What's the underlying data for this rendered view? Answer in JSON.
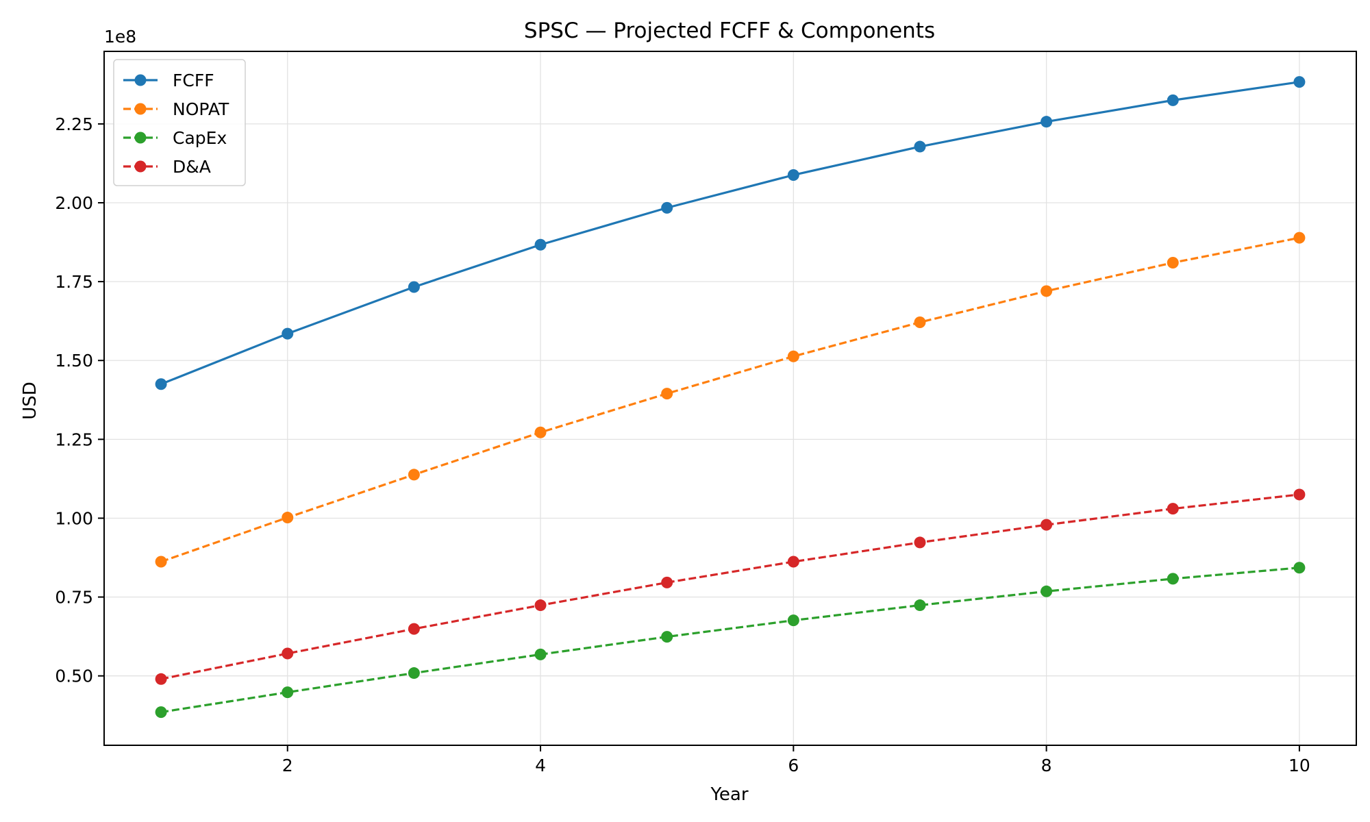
{
  "chart_data": {
    "type": "line",
    "title": "SPSC — Projected FCFF & Components",
    "xlabel": "Year",
    "ylabel": "USD",
    "y_offset_label": "1e8",
    "y_scale": 100000000,
    "x": [
      1,
      2,
      3,
      4,
      5,
      6,
      7,
      8,
      9,
      10
    ],
    "xlim": [
      0.55,
      10.45
    ],
    "ylim": [
      0.28,
      2.48
    ],
    "x_ticks": [
      2,
      4,
      6,
      8,
      10
    ],
    "x_tick_labels": [
      "2",
      "4",
      "6",
      "8",
      "10"
    ],
    "y_ticks": [
      0.5,
      0.75,
      1.0,
      1.25,
      1.5,
      1.75,
      2.0,
      2.25
    ],
    "y_tick_labels": [
      "0.50",
      "0.75",
      "1.00",
      "1.25",
      "1.50",
      "1.75",
      "2.00",
      "2.25"
    ],
    "grid": true,
    "legend_position": "top-left",
    "series": [
      {
        "name": "FCFF",
        "color": "#1f77b4",
        "style": "solid",
        "values": [
          1.425,
          1.585,
          1.733,
          1.867,
          1.984,
          2.088,
          2.178,
          2.257,
          2.325,
          2.383
        ]
      },
      {
        "name": "NOPAT",
        "color": "#ff7f0e",
        "style": "dashed",
        "values": [
          0.862,
          1.002,
          1.138,
          1.272,
          1.395,
          1.513,
          1.621,
          1.72,
          1.81,
          1.889
        ]
      },
      {
        "name": "CapEx",
        "color": "#2ca02c",
        "style": "dashed",
        "values": [
          0.385,
          0.448,
          0.509,
          0.568,
          0.624,
          0.676,
          0.724,
          0.768,
          0.808,
          0.843
        ]
      },
      {
        "name": "D&A",
        "color": "#d62728",
        "style": "dashed",
        "values": [
          0.49,
          0.571,
          0.649,
          0.724,
          0.796,
          0.862,
          0.923,
          0.979,
          1.03,
          1.075
        ]
      }
    ]
  }
}
